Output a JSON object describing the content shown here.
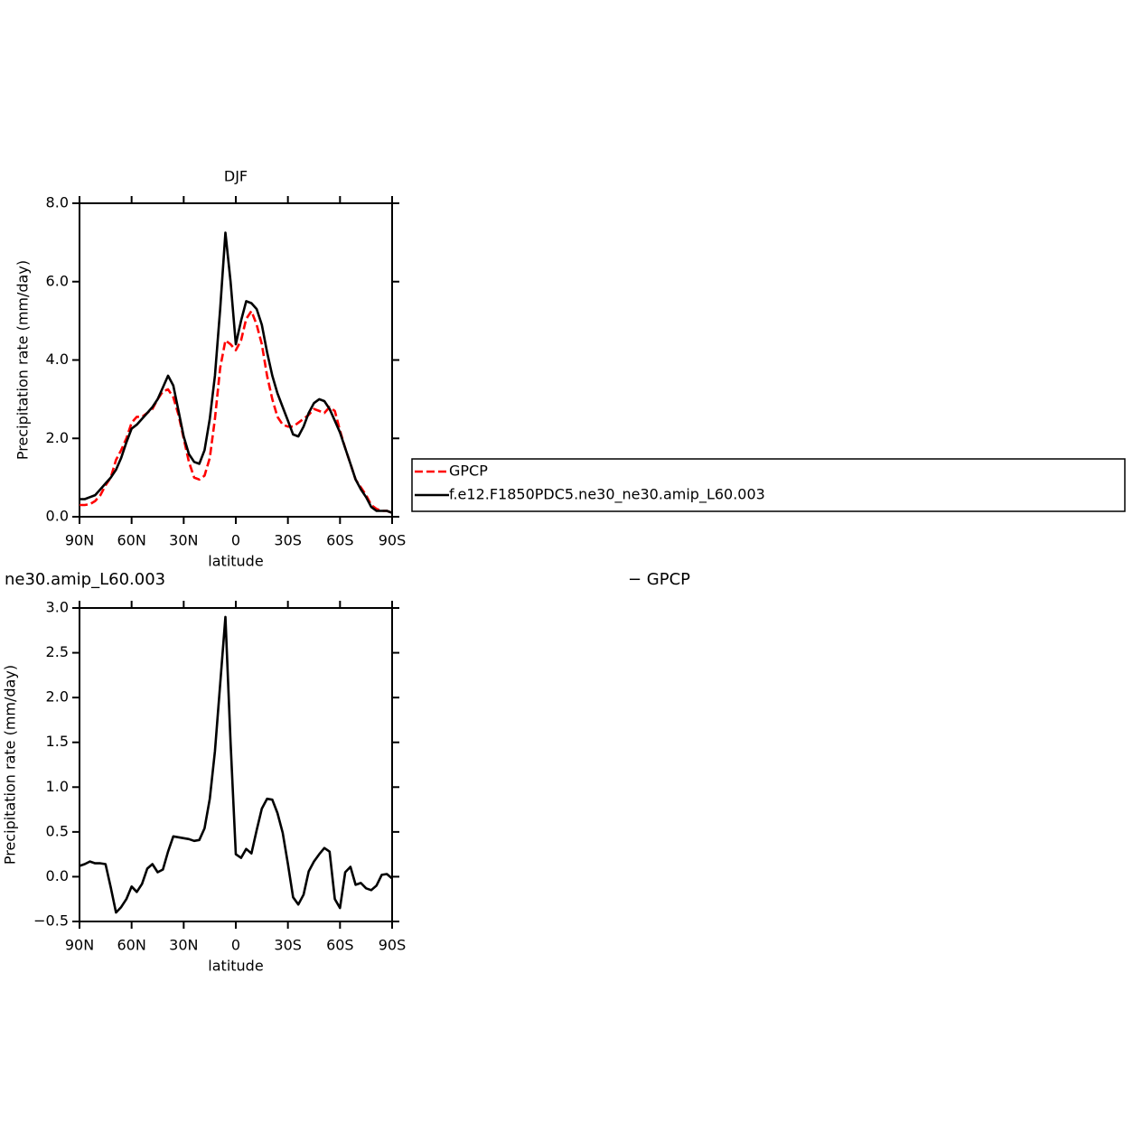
{
  "chart_data": [
    {
      "type": "line",
      "title": "DJF",
      "xlabel": "latitude",
      "ylabel": "Precipitation rate (mm/day)",
      "x": [
        90,
        87,
        84,
        81,
        78,
        75,
        72,
        69,
        66,
        63,
        60,
        57,
        54,
        51,
        48,
        45,
        42,
        39,
        36,
        33,
        30,
        27,
        24,
        21,
        18,
        15,
        12,
        9,
        6,
        3,
        0,
        -3,
        -6,
        -9,
        -12,
        -15,
        -18,
        -21,
        -24,
        -27,
        -30,
        -33,
        -36,
        -39,
        -42,
        -45,
        -48,
        -51,
        -54,
        -57,
        -60,
        -63,
        -66,
        -69,
        -72,
        -75,
        -78,
        -81,
        -84,
        -87,
        -90
      ],
      "series": [
        {
          "name": "GPCP",
          "color": "#ff0000",
          "dash": true,
          "values": [
            0.3,
            0.3,
            0.32,
            0.4,
            0.55,
            0.8,
            1.0,
            1.45,
            1.7,
            2.0,
            2.4,
            2.55,
            2.55,
            2.65,
            2.75,
            3.0,
            3.2,
            3.25,
            3.05,
            2.6,
            2.0,
            1.4,
            1.0,
            0.95,
            1.05,
            1.5,
            2.5,
            3.8,
            4.5,
            4.4,
            4.25,
            4.5,
            5.05,
            5.25,
            4.9,
            4.4,
            3.6,
            3.0,
            2.55,
            2.35,
            2.3,
            2.3,
            2.4,
            2.5,
            2.6,
            2.75,
            2.7,
            2.65,
            2.8,
            2.7,
            2.2,
            1.75,
            1.35,
            0.95,
            0.75,
            0.55,
            0.3,
            0.2,
            0.15,
            0.15,
            0.1
          ]
        },
        {
          "name": "f.e12.F1850PDC5.ne30_ne30.amip_L60.003",
          "color": "#000000",
          "dash": false,
          "values": [
            0.45,
            0.45,
            0.5,
            0.55,
            0.7,
            0.85,
            1.0,
            1.2,
            1.5,
            1.9,
            2.25,
            2.35,
            2.5,
            2.65,
            2.8,
            3.0,
            3.3,
            3.6,
            3.35,
            2.7,
            2.05,
            1.6,
            1.4,
            1.35,
            1.7,
            2.5,
            3.6,
            5.3,
            7.25,
            6.0,
            4.4,
            5.0,
            5.5,
            5.45,
            5.3,
            4.9,
            4.2,
            3.6,
            3.15,
            2.8,
            2.45,
            2.1,
            2.05,
            2.3,
            2.65,
            2.9,
            3.0,
            2.95,
            2.75,
            2.45,
            2.15,
            1.75,
            1.35,
            0.95,
            0.7,
            0.5,
            0.25,
            0.15,
            0.15,
            0.15,
            0.1
          ]
        }
      ],
      "xlim": [
        90,
        -90
      ],
      "xticks": [
        {
          "value": 90,
          "label": "90N"
        },
        {
          "value": 60,
          "label": "60N"
        },
        {
          "value": 30,
          "label": "30N"
        },
        0,
        {
          "value": -30,
          "label": "30S"
        },
        {
          "value": -60,
          "label": "60S"
        },
        {
          "value": -90,
          "label": "90S"
        }
      ],
      "ylim": [
        0,
        8
      ],
      "yticks": [
        {
          "value": 0,
          "label": "0.0"
        },
        {
          "value": 2,
          "label": "2.0"
        },
        {
          "value": 4,
          "label": "4.0"
        },
        {
          "value": 6,
          "label": "6.0"
        },
        {
          "value": 8,
          "label": "8.0"
        }
      ],
      "legend": "right"
    },
    {
      "type": "line",
      "title": "ne30.amip_L60.003",
      "title_right": "− GPCP",
      "xlabel": "latitude",
      "ylabel": "Precipitation rate (mm/day)",
      "x": [
        90,
        87,
        84,
        81,
        78,
        75,
        72,
        69,
        66,
        63,
        60,
        57,
        54,
        51,
        48,
        45,
        42,
        39,
        36,
        33,
        30,
        27,
        24,
        21,
        18,
        15,
        12,
        9,
        6,
        3,
        0,
        -3,
        -6,
        -9,
        -12,
        -15,
        -18,
        -21,
        -24,
        -27,
        -30,
        -33,
        -36,
        -39,
        -42,
        -45,
        -48,
        -51,
        -54,
        -57,
        -60,
        -63,
        -66,
        -69,
        -72,
        -75,
        -78,
        -81,
        -84,
        -87,
        -90
      ],
      "values": [
        0.12,
        0.14,
        0.17,
        0.15,
        0.15,
        0.14,
        -0.12,
        -0.4,
        -0.34,
        -0.25,
        -0.11,
        -0.17,
        -0.08,
        0.09,
        0.14,
        0.05,
        0.08,
        0.28,
        0.45,
        0.44,
        0.43,
        0.42,
        0.4,
        0.41,
        0.54,
        0.87,
        1.4,
        2.15,
        2.9,
        1.5,
        0.25,
        0.21,
        0.31,
        0.26,
        0.52,
        0.76,
        0.87,
        0.86,
        0.71,
        0.49,
        0.14,
        -0.23,
        -0.31,
        -0.2,
        0.06,
        0.17,
        0.25,
        0.32,
        0.28,
        -0.25,
        -0.35,
        0.05,
        0.11,
        -0.09,
        -0.07,
        -0.13,
        -0.15,
        -0.1,
        0.02,
        0.03,
        -0.02
      ],
      "color": "#000000",
      "xlim": [
        90,
        -90
      ],
      "xticks": [
        {
          "value": 90,
          "label": "90N"
        },
        {
          "value": 60,
          "label": "60N"
        },
        {
          "value": 30,
          "label": "30N"
        },
        0,
        {
          "value": -30,
          "label": "30S"
        },
        {
          "value": -60,
          "label": "60S"
        },
        {
          "value": -90,
          "label": "90S"
        }
      ],
      "ylim": [
        -0.5,
        3
      ],
      "yticks": [
        {
          "value": -0.5,
          "label": "−0.5"
        },
        {
          "value": 0,
          "label": "0.0"
        },
        {
          "value": 0.5,
          "label": "0.5"
        },
        {
          "value": 1,
          "label": "1.0"
        },
        {
          "value": 1.5,
          "label": "1.5"
        },
        {
          "value": 2,
          "label": "2.0"
        },
        {
          "value": 2.5,
          "label": "2.5"
        },
        {
          "value": 3,
          "label": "3.0"
        }
      ]
    }
  ]
}
